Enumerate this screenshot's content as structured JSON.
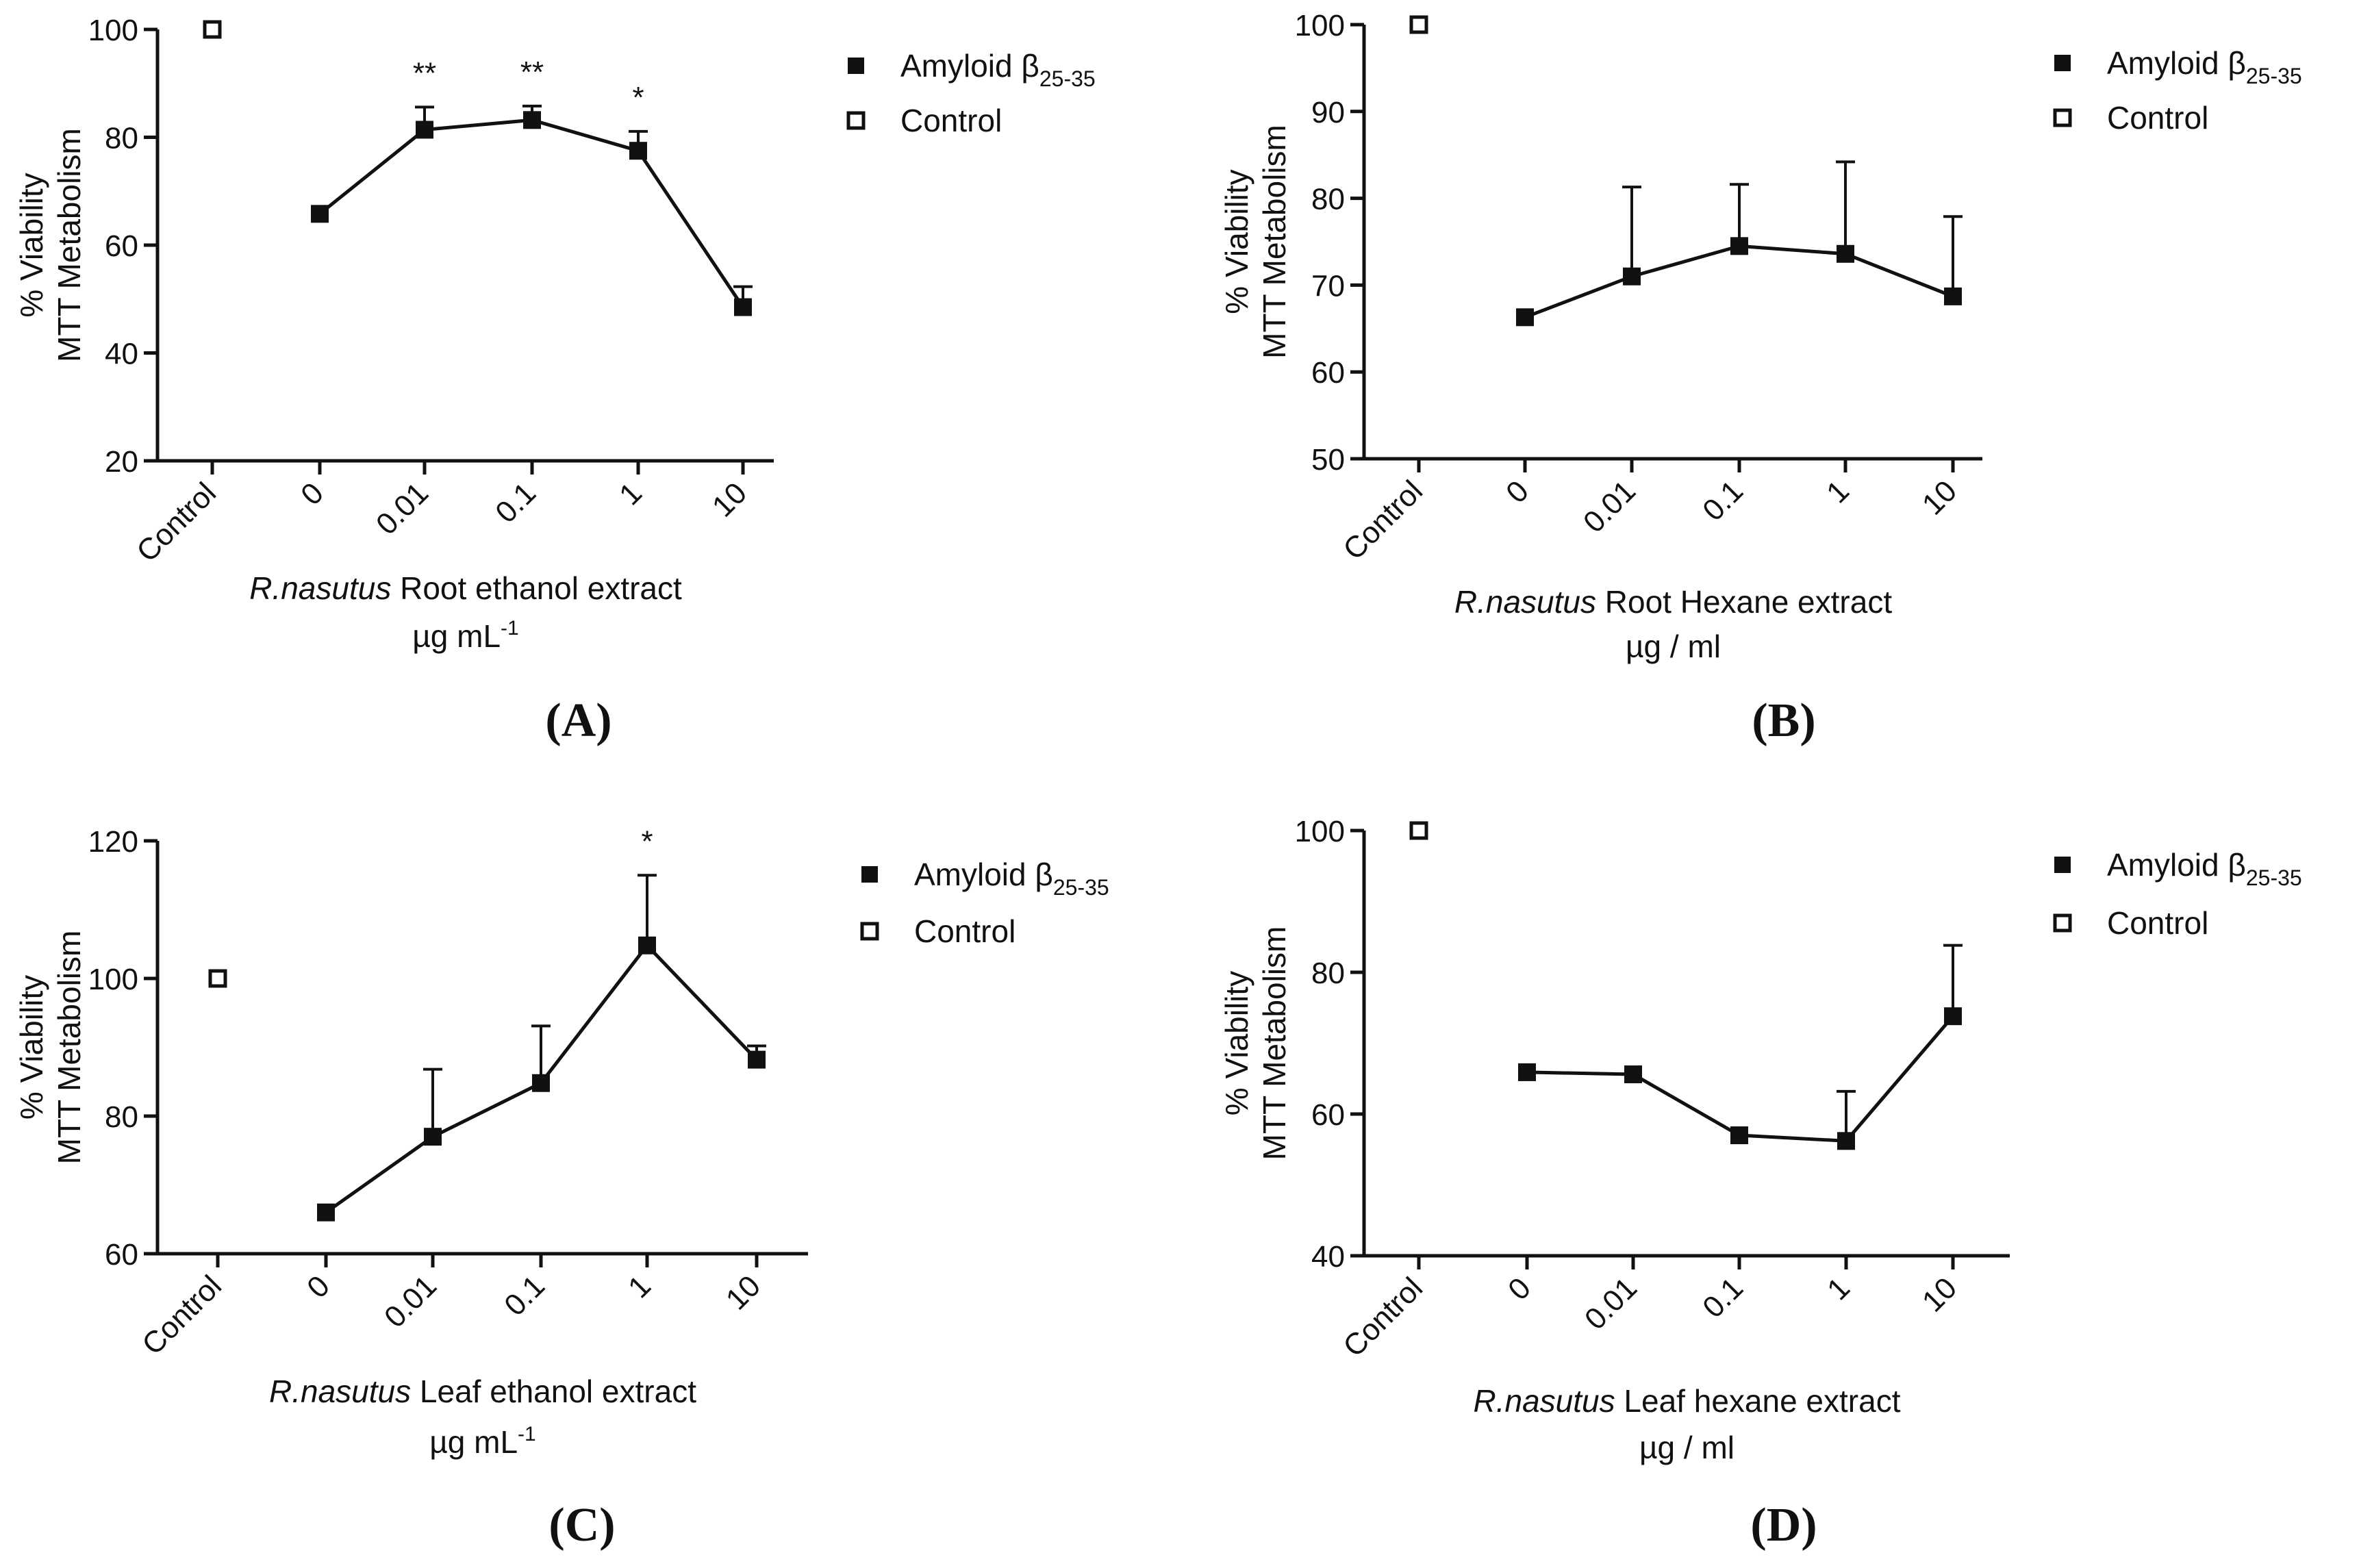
{
  "legend_labels": {
    "amyloid": "Amyloid β",
    "amyloid_sub": "25-35",
    "control": "Control"
  },
  "colors": {
    "marks": "#111111",
    "background": "#ffffff"
  },
  "chart_data": [
    {
      "panel": "(A)",
      "type": "line",
      "categories": [
        "Control",
        "0",
        "0.01",
        "0.1",
        "1",
        "10"
      ],
      "ylabel_line1": "% Viability",
      "ylabel_line2": "MTT Metabolism",
      "xlabel_italic": "R.nasutus",
      "xlabel_rest": " Root ethanol extract",
      "unit_main": "µg mL",
      "unit_sup": "-1",
      "ylim": [
        20,
        100
      ],
      "yticks": [
        20,
        40,
        60,
        80,
        100
      ],
      "control_point": {
        "category": "Control",
        "value": 100
      },
      "series": [
        {
          "name": "Amyloid β25-35",
          "x": [
            "0",
            "0.01",
            "0.1",
            "1",
            "10"
          ],
          "values": [
            65.8,
            81.4,
            83.2,
            77.5,
            48.5
          ],
          "error": [
            0,
            4.2,
            2.6,
            3.6,
            3.8
          ]
        }
      ],
      "annotations": [
        {
          "category": "0.01",
          "text": "**"
        },
        {
          "category": "0.1",
          "text": "**"
        },
        {
          "category": "1",
          "text": "*"
        }
      ],
      "legend_position": "top-right",
      "grid": false
    },
    {
      "panel": "(B)",
      "type": "line",
      "categories": [
        "Control",
        "0",
        "0.01",
        "0.1",
        "1",
        "10"
      ],
      "ylabel_line1": "% Viability",
      "ylabel_line2": "MTT Metabolism",
      "xlabel_italic": "R.nasutus",
      "xlabel_rest": " Root Hexane extract",
      "unit_main": "µg / ml",
      "unit_sup": "",
      "ylim": [
        50,
        100
      ],
      "yticks": [
        50,
        60,
        70,
        80,
        90,
        100
      ],
      "control_point": {
        "category": "Control",
        "value": 100
      },
      "series": [
        {
          "name": "Amyloid β25-35",
          "x": [
            "0",
            "0.01",
            "0.1",
            "1",
            "10"
          ],
          "values": [
            66.3,
            71.0,
            74.5,
            73.6,
            68.7
          ],
          "error": [
            0,
            10.3,
            7.1,
            10.6,
            9.2
          ]
        }
      ],
      "annotations": [],
      "legend_position": "top-right",
      "grid": false
    },
    {
      "panel": "(C)",
      "type": "line",
      "categories": [
        "Control",
        "0",
        "0.01",
        "0.1",
        "1",
        "10"
      ],
      "ylabel_line1": "% Viability",
      "ylabel_line2": "MTT Metabolism",
      "xlabel_italic": "R.nasutus",
      "xlabel_rest": " Leaf ethanol extract",
      "unit_main": "µg mL",
      "unit_sup": "-1",
      "ylim": [
        60,
        120
      ],
      "yticks": [
        60,
        80,
        100,
        120
      ],
      "control_point": {
        "category": "Control",
        "value": 100
      },
      "series": [
        {
          "name": "Amyloid β25-35",
          "x": [
            "0",
            "0.01",
            "0.1",
            "1",
            "10"
          ],
          "values": [
            66.0,
            77.0,
            84.8,
            104.8,
            88.2
          ],
          "error": [
            0,
            9.8,
            8.3,
            10.2,
            2.0
          ]
        }
      ],
      "annotations": [
        {
          "category": "1",
          "text": "*"
        }
      ],
      "legend_position": "top-right",
      "grid": false
    },
    {
      "panel": "(D)",
      "type": "line",
      "categories": [
        "Control",
        "0",
        "0.01",
        "0.1",
        "1",
        "10"
      ],
      "ylabel_line1": "% Viability",
      "ylabel_line2": "MTT Metabolism",
      "xlabel_italic": "R.nasutus",
      "xlabel_rest": " Leaf hexane extract",
      "unit_main": "µg / ml",
      "unit_sup": "",
      "ylim": [
        40,
        100
      ],
      "yticks": [
        40,
        60,
        80,
        100
      ],
      "control_point": {
        "category": "Control",
        "value": 100
      },
      "series": [
        {
          "name": "Amyloid β25-35",
          "x": [
            "0",
            "0.01",
            "0.1",
            "1",
            "10"
          ],
          "values": [
            65.9,
            65.6,
            57.0,
            56.2,
            73.8
          ],
          "error": [
            0,
            0,
            0,
            7.0,
            10.0
          ]
        }
      ],
      "annotations": [],
      "legend_position": "top-right",
      "grid": false
    }
  ]
}
